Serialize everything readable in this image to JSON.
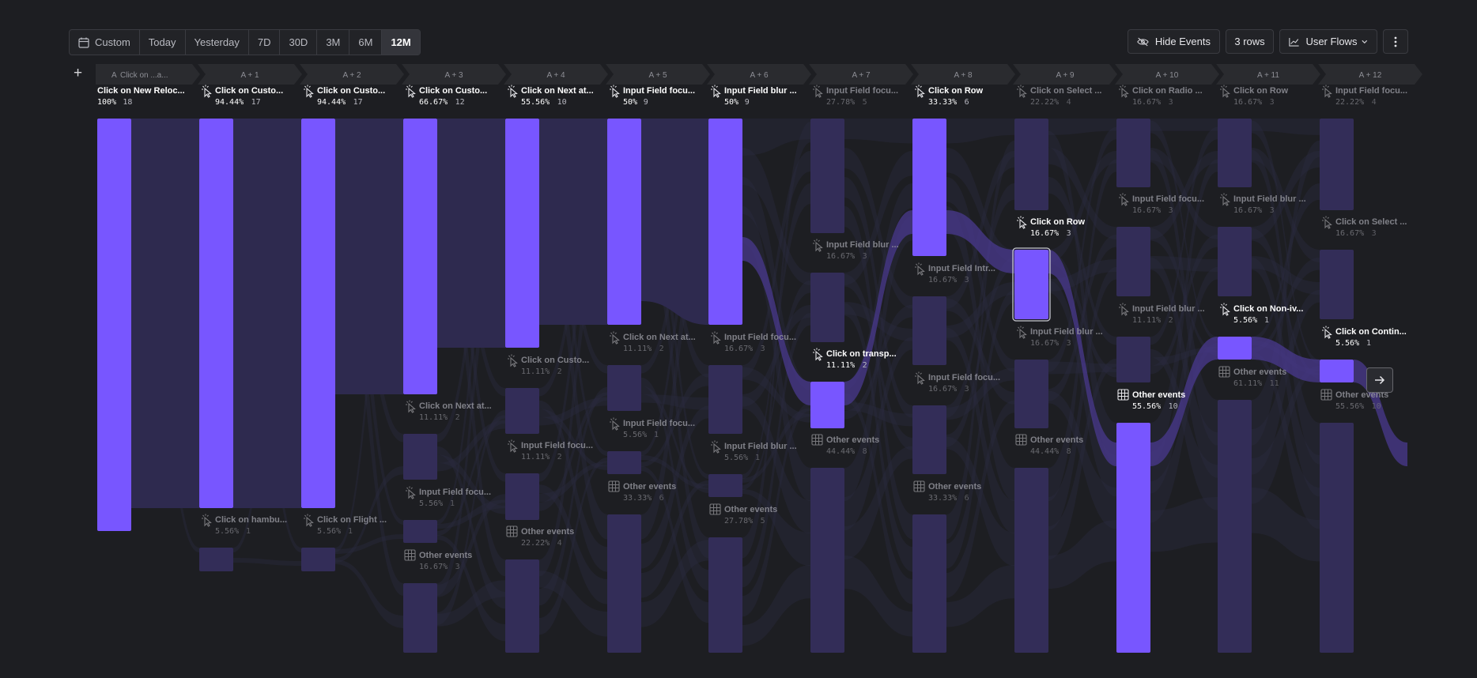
{
  "toolbar": {
    "date_ranges": [
      "Custom",
      "Today",
      "Yesterday",
      "7D",
      "30D",
      "3M",
      "6M",
      "12M"
    ],
    "active_range": "12M"
  },
  "actions": {
    "hide_events": "Hide Events",
    "rows": "3 rows",
    "view": "User Flows"
  },
  "colors": {
    "accent": "#7856ff",
    "muted": "#332d58",
    "background": "#1d1e22"
  },
  "steps": [
    {
      "label": "Click on ...a...",
      "badge": "A",
      "nodes": [
        {
          "name": "Click on New Reloc...",
          "pct": "100%",
          "count": "18",
          "icon": "none",
          "selected": true
        }
      ]
    },
    {
      "label": "A + 1",
      "nodes": [
        {
          "name": "Click on Custo...",
          "pct": "94.44%",
          "count": "17",
          "icon": "cursor-icon",
          "selected": true
        },
        {
          "name": "Click on hambu...",
          "pct": "5.56%",
          "count": "1",
          "icon": "cursor-icon",
          "selected": false
        }
      ]
    },
    {
      "label": "A + 2",
      "nodes": [
        {
          "name": "Click on Custo...",
          "pct": "94.44%",
          "count": "17",
          "icon": "cursor-icon",
          "selected": true
        },
        {
          "name": "Click on Flight ...",
          "pct": "5.56%",
          "count": "1",
          "icon": "cursor-icon",
          "selected": false
        }
      ]
    },
    {
      "label": "A + 3",
      "nodes": [
        {
          "name": "Click on Custo...",
          "pct": "66.67%",
          "count": "12",
          "icon": "cursor-icon",
          "selected": true
        },
        {
          "name": "Click on Next at...",
          "pct": "11.11%",
          "count": "2",
          "icon": "cursor-icon",
          "selected": false
        },
        {
          "name": "Input Field focu...",
          "pct": "5.56%",
          "count": "1",
          "icon": "cursor-icon",
          "selected": false
        },
        {
          "name": "Other events",
          "pct": "16.67%",
          "count": "3",
          "icon": "grid-icon",
          "selected": false
        }
      ]
    },
    {
      "label": "A + 4",
      "nodes": [
        {
          "name": "Click on Next at...",
          "pct": "55.56%",
          "count": "10",
          "icon": "cursor-icon",
          "selected": true
        },
        {
          "name": "Click on Custo...",
          "pct": "11.11%",
          "count": "2",
          "icon": "cursor-icon",
          "selected": false
        },
        {
          "name": "Input Field focu...",
          "pct": "11.11%",
          "count": "2",
          "icon": "cursor-icon",
          "selected": false
        },
        {
          "name": "Other events",
          "pct": "22.22%",
          "count": "4",
          "icon": "grid-icon",
          "selected": false
        }
      ]
    },
    {
      "label": "A + 5",
      "nodes": [
        {
          "name": "Input Field focu...",
          "pct": "50%",
          "count": "9",
          "icon": "cursor-icon",
          "selected": true
        },
        {
          "name": "Click on Next at...",
          "pct": "11.11%",
          "count": "2",
          "icon": "cursor-icon",
          "selected": false
        },
        {
          "name": "Input Field focu...",
          "pct": "5.56%",
          "count": "1",
          "icon": "cursor-icon",
          "selected": false
        },
        {
          "name": "Other events",
          "pct": "33.33%",
          "count": "6",
          "icon": "grid-icon",
          "selected": false
        }
      ]
    },
    {
      "label": "A + 6",
      "nodes": [
        {
          "name": "Input Field blur ...",
          "pct": "50%",
          "count": "9",
          "icon": "cursor-icon",
          "selected": true
        },
        {
          "name": "Input Field focu...",
          "pct": "16.67%",
          "count": "3",
          "icon": "cursor-icon",
          "selected": false
        },
        {
          "name": "Input Field blur ...",
          "pct": "5.56%",
          "count": "1",
          "icon": "cursor-icon",
          "selected": false
        },
        {
          "name": "Other events",
          "pct": "27.78%",
          "count": "5",
          "icon": "grid-icon",
          "selected": false
        }
      ]
    },
    {
      "label": "A + 7",
      "nodes": [
        {
          "name": "Input Field focu...",
          "pct": "27.78%",
          "count": "5",
          "icon": "cursor-icon",
          "selected": false
        },
        {
          "name": "Input Field blur ...",
          "pct": "16.67%",
          "count": "3",
          "icon": "cursor-icon",
          "selected": false
        },
        {
          "name": "Click on transp...",
          "pct": "11.11%",
          "count": "2",
          "icon": "cursor-icon",
          "selected": true
        },
        {
          "name": "Other events",
          "pct": "44.44%",
          "count": "8",
          "icon": "grid-icon",
          "selected": false
        }
      ]
    },
    {
      "label": "A + 8",
      "nodes": [
        {
          "name": "Click on Row",
          "pct": "33.33%",
          "count": "6",
          "icon": "cursor-icon",
          "selected": true
        },
        {
          "name": "Input Field Intr...",
          "pct": "16.67%",
          "count": "3",
          "icon": "cursor-icon",
          "selected": false
        },
        {
          "name": "Input Field focu...",
          "pct": "16.67%",
          "count": "3",
          "icon": "cursor-icon",
          "selected": false
        },
        {
          "name": "Other events",
          "pct": "33.33%",
          "count": "6",
          "icon": "grid-icon",
          "selected": false
        }
      ]
    },
    {
      "label": "A + 9",
      "nodes": [
        {
          "name": "Click on Select ...",
          "pct": "22.22%",
          "count": "4",
          "icon": "cursor-icon",
          "selected": false
        },
        {
          "name": "Click on Row",
          "pct": "16.67%",
          "count": "3",
          "icon": "cursor-icon",
          "selected": true,
          "outlined": true
        },
        {
          "name": "Input Field blur ...",
          "pct": "16.67%",
          "count": "3",
          "icon": "cursor-icon",
          "selected": false
        },
        {
          "name": "Other events",
          "pct": "44.44%",
          "count": "8",
          "icon": "grid-icon",
          "selected": false
        }
      ]
    },
    {
      "label": "A + 10",
      "nodes": [
        {
          "name": "Click on Radio ...",
          "pct": "16.67%",
          "count": "3",
          "icon": "cursor-icon",
          "selected": false
        },
        {
          "name": "Input Field focu...",
          "pct": "16.67%",
          "count": "3",
          "icon": "cursor-icon",
          "selected": false
        },
        {
          "name": "Input Field blur ...",
          "pct": "11.11%",
          "count": "2",
          "icon": "cursor-icon",
          "selected": false
        },
        {
          "name": "Other events",
          "pct": "55.56%",
          "count": "10",
          "icon": "grid-icon",
          "selected": true
        }
      ]
    },
    {
      "label": "A + 11",
      "nodes": [
        {
          "name": "Click on Row",
          "pct": "16.67%",
          "count": "3",
          "icon": "cursor-icon",
          "selected": false
        },
        {
          "name": "Input Field blur ...",
          "pct": "16.67%",
          "count": "3",
          "icon": "cursor-icon",
          "selected": false
        },
        {
          "name": "Click on Non-iv...",
          "pct": "5.56%",
          "count": "1",
          "icon": "cursor-icon",
          "selected": true
        },
        {
          "name": "Other events",
          "pct": "61.11%",
          "count": "11",
          "icon": "grid-icon",
          "selected": false
        }
      ]
    },
    {
      "label": "A + 12",
      "nodes": [
        {
          "name": "Input Field focu...",
          "pct": "22.22%",
          "count": "4",
          "icon": "cursor-icon",
          "selected": false
        },
        {
          "name": "Click on Select ...",
          "pct": "16.67%",
          "count": "3",
          "icon": "cursor-icon",
          "selected": false
        },
        {
          "name": "Click on Contin...",
          "pct": "5.56%",
          "count": "1",
          "icon": "cursor-icon",
          "selected": true
        },
        {
          "name": "Other events",
          "pct": "55.56%",
          "count": "10",
          "icon": "grid-icon",
          "selected": false
        }
      ]
    }
  ]
}
